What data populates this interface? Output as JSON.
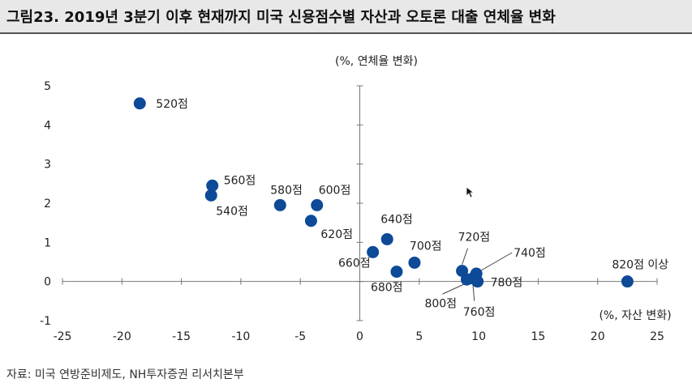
{
  "title": "그림23. 2019년 3분기 이후 현재까지 미국 신용점수별 자산과 오토론 대출 연체율 변화",
  "source": "자료: 미국 연방준비제도, NH투자증권 리서치본부",
  "chart_data": {
    "type": "scatter",
    "xlabel": "(%, 자산 변화)",
    "ylabel": "(%, 연체율 변화)",
    "xlim": [
      -25,
      25
    ],
    "ylim": [
      -1,
      5
    ],
    "xticks": [
      "-25",
      "-20",
      "-15",
      "-10",
      "-5",
      "0",
      "5",
      "10",
      "15",
      "20",
      "25"
    ],
    "yticks": [
      "5",
      "4",
      "3",
      "2",
      "1",
      "0",
      "-1"
    ],
    "grid": false,
    "marker_color": "#0d4a97",
    "points": [
      {
        "label": "520점",
        "x": -18.5,
        "y": 4.55
      },
      {
        "label": "540점",
        "x": -12.5,
        "y": 2.2
      },
      {
        "label": "560점",
        "x": -12.4,
        "y": 2.45
      },
      {
        "label": "580점",
        "x": -6.7,
        "y": 1.95
      },
      {
        "label": "600점",
        "x": -3.6,
        "y": 1.95
      },
      {
        "label": "620점",
        "x": -4.1,
        "y": 1.55
      },
      {
        "label": "640점",
        "x": 2.3,
        "y": 1.08
      },
      {
        "label": "660점",
        "x": 1.1,
        "y": 0.75
      },
      {
        "label": "680점",
        "x": 3.1,
        "y": 0.25
      },
      {
        "label": "700점",
        "x": 4.6,
        "y": 0.48
      },
      {
        "label": "720점",
        "x": 8.6,
        "y": 0.27
      },
      {
        "label": "740점",
        "x": 9.8,
        "y": 0.2
      },
      {
        "label": "760점",
        "x": 9.5,
        "y": 0.08
      },
      {
        "label": "780점",
        "x": 9.9,
        "y": 0.0
      },
      {
        "label": "800점",
        "x": 9.0,
        "y": 0.05
      },
      {
        "label": "820점 이상",
        "x": 22.5,
        "y": 0.0
      }
    ]
  }
}
